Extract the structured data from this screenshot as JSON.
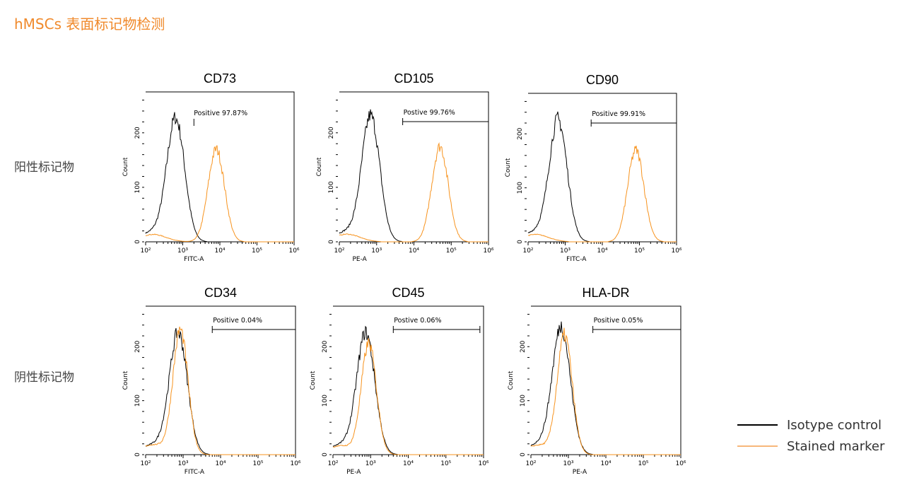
{
  "title": "hMSCs 表面标记物检测",
  "row_labels": [
    "阳性标记物",
    "阴性标记物"
  ],
  "legend": [
    {
      "label": "Isotype control",
      "color": "#000000"
    },
    {
      "label": "Stained marker",
      "color": "#f7931e"
    }
  ],
  "chart_data": [
    {
      "type": "line",
      "title": "CD73",
      "xlabel": "FITC-A",
      "ylabel": "Count",
      "xscale": "log",
      "xlim": [
        100,
        1000000
      ],
      "ylim": [
        0,
        275
      ],
      "xticks": [
        "10²",
        "10³",
        "10⁴",
        "10⁵",
        "10⁶"
      ],
      "yticks": [
        0,
        100,
        200
      ],
      "gate_label": "Positive 97.87%",
      "gate": [
        2000,
        1000000
      ],
      "series": [
        {
          "name": "Isotype control",
          "peak_x": 650,
          "peak_count": 225
        },
        {
          "name": "Stained marker",
          "peak_x": 8000,
          "peak_count": 170
        }
      ]
    },
    {
      "type": "line",
      "title": "CD105",
      "xlabel": "PE-A",
      "ylabel": "Count",
      "xscale": "log",
      "xlim": [
        100,
        1000000
      ],
      "ylim": [
        0,
        275
      ],
      "xticks": [
        "10²",
        "10³",
        "10⁴",
        "10⁵",
        "10⁶"
      ],
      "yticks": [
        0,
        100,
        200
      ],
      "gate_label": "Postive 99.76%",
      "gate": [
        5000,
        1000000
      ],
      "series": [
        {
          "name": "Isotype control",
          "peak_x": 700,
          "peak_count": 230
        },
        {
          "name": "Stained marker",
          "peak_x": 50000,
          "peak_count": 175
        }
      ]
    },
    {
      "type": "line",
      "title": "CD90",
      "xlabel": "FITC-A",
      "ylabel": "Count",
      "xscale": "log",
      "xlim": [
        100,
        1000000
      ],
      "ylim": [
        0,
        275
      ],
      "xticks": [
        "10²",
        "10³",
        "10⁴",
        "10⁵",
        "10⁶"
      ],
      "yticks": [
        0,
        100,
        200
      ],
      "gate_label": "Positive 99.91%",
      "gate": [
        5000,
        1000000
      ],
      "series": [
        {
          "name": "Isotype control",
          "peak_x": 650,
          "peak_count": 225
        },
        {
          "name": "Stained marker",
          "peak_x": 80000,
          "peak_count": 170
        }
      ]
    },
    {
      "type": "line",
      "title": "CD34",
      "xlabel": "FITC-A",
      "ylabel": "Count",
      "xscale": "log",
      "xlim": [
        100,
        1000000
      ],
      "ylim": [
        0,
        275
      ],
      "xticks": [
        "10²",
        "10³",
        "10⁴",
        "10⁵",
        "10⁶"
      ],
      "yticks": [
        0,
        100,
        200
      ],
      "gate_label": "Positive 0.04%",
      "gate": [
        6000,
        1000000
      ],
      "series": [
        {
          "name": "Isotype control",
          "peak_x": 750,
          "peak_count": 225
        },
        {
          "name": "Stained marker",
          "peak_x": 850,
          "peak_count": 230
        }
      ]
    },
    {
      "type": "line",
      "title": "CD45",
      "xlabel": "PE-A",
      "ylabel": "Count",
      "xscale": "log",
      "xlim": [
        100,
        1000000
      ],
      "ylim": [
        0,
        275
      ],
      "xticks": [
        "10²",
        "10³",
        "10⁴",
        "10⁵",
        "10⁶"
      ],
      "yticks": [
        0,
        100,
        200
      ],
      "gate_label": "Postive 0.06%",
      "gate": [
        4000,
        800000
      ],
      "series": [
        {
          "name": "Isotype control",
          "peak_x": 750,
          "peak_count": 225
        },
        {
          "name": "Stained marker",
          "peak_x": 900,
          "peak_count": 205
        }
      ]
    },
    {
      "type": "line",
      "title": "HLA-DR",
      "xlabel": "PE-A",
      "ylabel": "Count",
      "xscale": "log",
      "xlim": [
        100,
        1000000
      ],
      "ylim": [
        0,
        275
      ],
      "xticks": [
        "10²",
        "10³",
        "10⁴",
        "10⁵",
        "10⁶"
      ],
      "yticks": [
        0,
        100,
        200
      ],
      "gate_label": "Positive 0.05%",
      "gate": [
        4500,
        1000000
      ],
      "series": [
        {
          "name": "Isotype control",
          "peak_x": 650,
          "peak_count": 235
        },
        {
          "name": "Stained marker",
          "peak_x": 800,
          "peak_count": 220
        }
      ]
    }
  ]
}
